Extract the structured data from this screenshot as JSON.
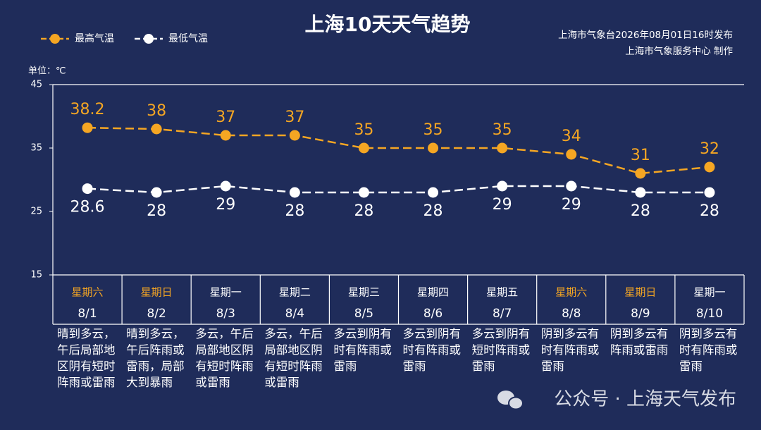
{
  "chart_data": {
    "type": "line",
    "title": "上海10天天气趋势",
    "source": [
      "上海市气象台2026年08月01日16时发布",
      "上海市气象服务中心  制作"
    ],
    "unit_label": "单位：℃",
    "categories": [
      "8/1",
      "8/2",
      "8/3",
      "8/4",
      "8/5",
      "8/6",
      "8/7",
      "8/8",
      "8/9",
      "8/10"
    ],
    "weekdays": [
      "星期六",
      "星期日",
      "星期一",
      "星期二",
      "星期三",
      "星期四",
      "星期五",
      "星期六",
      "星期日",
      "星期一"
    ],
    "weekday_colors": [
      "#f5a623",
      "#f5a623",
      "#ffffff",
      "#ffffff",
      "#ffffff",
      "#ffffff",
      "#ffffff",
      "#f5a623",
      "#f5a623",
      "#ffffff"
    ],
    "weather": [
      "晴到多云，午后局部地区阴有短时阵雨或雷雨",
      "晴到多云，午后阵雨或雷雨，局部大到暴雨",
      "多云，午后局部地区阴有短时阵雨或雷雨",
      "多云，午后局部地区阴有短时阵雨或雷雨",
      "多云到阴有时有阵雨或雷雨",
      "多云到阴有时有阵雨或雷雨",
      "多云到阴有短时阵雨或雷雨",
      "阴到多云有时有阵雨或雷雨",
      "阴到多云有阵雨或雷雨",
      "阴到多云有时有阵雨或雷雨"
    ],
    "series": [
      {
        "name": "最高气温",
        "color": "#f5a623",
        "values": [
          38.2,
          38,
          37,
          37,
          35,
          35,
          35,
          34,
          31,
          32
        ]
      },
      {
        "name": "最低气温",
        "color": "#ffffff",
        "values": [
          28.6,
          28,
          29,
          28,
          28,
          28,
          29,
          29,
          28,
          28
        ]
      }
    ],
    "ylim": [
      15,
      45
    ],
    "yticks": [
      15,
      25,
      35,
      45
    ],
    "grid": false
  },
  "footer": "公众号 · 上海天气发布"
}
